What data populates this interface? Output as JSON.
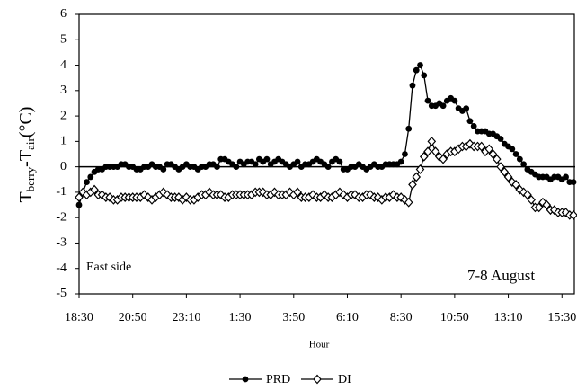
{
  "chart_data": {
    "type": "line",
    "y_label": {
      "main": "T",
      "sub1": "berry",
      "mid": "-T",
      "sub2": "air",
      "end": "(°C)"
    },
    "x_label": "Hour",
    "annotations": [
      "East side",
      "7-8 August"
    ],
    "categories": [
      "18:30",
      null,
      null,
      null,
      null,
      null,
      null,
      null,
      null,
      null,
      null,
      null,
      null,
      null,
      "20:50",
      null,
      null,
      null,
      null,
      null,
      null,
      null,
      null,
      null,
      null,
      null,
      null,
      null,
      "23:10",
      null,
      null,
      null,
      null,
      null,
      null,
      null,
      null,
      null,
      null,
      null,
      null,
      null,
      "1:30",
      null,
      null,
      null,
      null,
      null,
      null,
      null,
      null,
      null,
      null,
      null,
      null,
      null,
      "3:50",
      null,
      null,
      null,
      null,
      null,
      null,
      null,
      null,
      null,
      null,
      null,
      null,
      null,
      "6:10",
      null,
      null,
      null,
      null,
      null,
      null,
      null,
      null,
      null,
      null,
      null,
      null,
      null,
      "8:30",
      null,
      null,
      null,
      null,
      null,
      null,
      null,
      null,
      null,
      null,
      null,
      null,
      null,
      "10:50",
      null,
      null,
      null,
      null,
      null,
      null,
      null,
      null,
      null,
      null,
      null,
      null,
      null,
      "13:10",
      null,
      null,
      null,
      null,
      null,
      null,
      null,
      null,
      null,
      null,
      null,
      null,
      null,
      "15:30",
      null,
      null,
      null
    ],
    "series": [
      {
        "name": "PRD",
        "color": "#000000",
        "marker": "circle",
        "values": [
          -1.5,
          -1.0,
          -0.6,
          -0.4,
          -0.2,
          -0.1,
          -0.1,
          0,
          0,
          0,
          0,
          0.1,
          0.1,
          0,
          0,
          -0.1,
          -0.1,
          0,
          0,
          0.1,
          0,
          0,
          -0.1,
          0.1,
          0.1,
          0,
          -0.1,
          0,
          0.1,
          0,
          0,
          -0.1,
          0,
          0,
          0.1,
          0.1,
          0,
          0.3,
          0.3,
          0.2,
          0.1,
          0,
          0.2,
          0.1,
          0.2,
          0.2,
          0.1,
          0.3,
          0.2,
          0.3,
          0.1,
          0.2,
          0.3,
          0.2,
          0.1,
          0,
          0.1,
          0.2,
          0,
          0.1,
          0.1,
          0.2,
          0.3,
          0.2,
          0.1,
          0,
          0.2,
          0.3,
          0.2,
          -0.1,
          -0.1,
          0,
          0,
          0.1,
          0,
          -0.1,
          0,
          0.1,
          0,
          0,
          0.1,
          0.1,
          0.1,
          0.1,
          0.2,
          0.5,
          1.5,
          3.2,
          3.8,
          4.0,
          3.6,
          2.6,
          2.4,
          2.4,
          2.5,
          2.4,
          2.6,
          2.7,
          2.6,
          2.3,
          2.2,
          2.3,
          1.8,
          1.6,
          1.4,
          1.4,
          1.4,
          1.3,
          1.3,
          1.2,
          1.1,
          0.9,
          0.8,
          0.7,
          0.5,
          0.3,
          0.1,
          -0.1,
          -0.2,
          -0.3,
          -0.4,
          -0.4,
          -0.4,
          -0.5,
          -0.4,
          -0.4,
          -0.5,
          -0.4,
          -0.6,
          -0.6
        ]
      },
      {
        "name": "DI",
        "color": "#000000",
        "marker": "diamond",
        "values": [
          -1.2,
          -1.0,
          -1.1,
          -1.0,
          -0.9,
          -1.1,
          -1.1,
          -1.2,
          -1.2,
          -1.3,
          -1.3,
          -1.2,
          -1.2,
          -1.2,
          -1.2,
          -1.2,
          -1.2,
          -1.1,
          -1.2,
          -1.3,
          -1.2,
          -1.1,
          -1.0,
          -1.1,
          -1.2,
          -1.2,
          -1.2,
          -1.3,
          -1.2,
          -1.3,
          -1.3,
          -1.2,
          -1.1,
          -1.1,
          -1.0,
          -1.1,
          -1.1,
          -1.1,
          -1.2,
          -1.2,
          -1.1,
          -1.1,
          -1.1,
          -1.1,
          -1.1,
          -1.1,
          -1.0,
          -1.0,
          -1.0,
          -1.1,
          -1.1,
          -1.0,
          -1.1,
          -1.1,
          -1.1,
          -1.0,
          -1.1,
          -1.0,
          -1.2,
          -1.2,
          -1.2,
          -1.1,
          -1.2,
          -1.2,
          -1.1,
          -1.2,
          -1.2,
          -1.1,
          -1.0,
          -1.1,
          -1.2,
          -1.1,
          -1.1,
          -1.2,
          -1.2,
          -1.1,
          -1.1,
          -1.2,
          -1.2,
          -1.3,
          -1.2,
          -1.2,
          -1.1,
          -1.2,
          -1.2,
          -1.3,
          -1.4,
          -0.7,
          -0.4,
          -0.1,
          0.4,
          0.6,
          1.0,
          0.6,
          0.4,
          0.3,
          0.5,
          0.6,
          0.6,
          0.7,
          0.8,
          0.8,
          0.9,
          0.8,
          0.8,
          0.8,
          0.6,
          0.7,
          0.5,
          0.3,
          0.0,
          -0.2,
          -0.4,
          -0.6,
          -0.7,
          -0.9,
          -1.0,
          -1.1,
          -1.3,
          -1.6,
          -1.6,
          -1.4,
          -1.5,
          -1.7,
          -1.7,
          -1.8,
          -1.8,
          -1.8,
          -1.9,
          -1.9
        ]
      }
    ],
    "ylim": [
      -5,
      6
    ],
    "yticks": [
      -5,
      -4,
      -3,
      -2,
      -1,
      0,
      1,
      2,
      3,
      4,
      5,
      6
    ],
    "grid": false,
    "legend": "bottom"
  }
}
